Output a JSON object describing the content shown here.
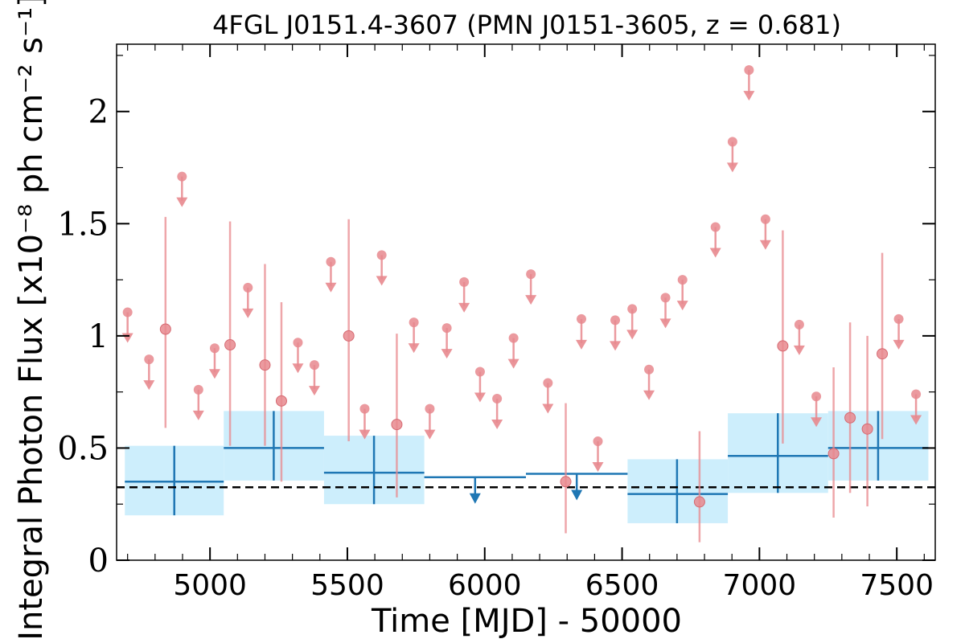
{
  "chart_data": {
    "type": "scatter",
    "title": "4FGL J0151.4-3607 (PMN J0151-3605, z = 0.681)",
    "xlabel": "Time [MJD] - 50000",
    "ylabel": "Integral Photon Flux [x10⁻⁸ ph cm⁻² s⁻¹]",
    "xlim": [
      4660,
      7640
    ],
    "ylim": [
      0,
      2.3
    ],
    "xticks": [
      5000,
      5500,
      6000,
      6500,
      7000,
      7500
    ],
    "xtick_labels": [
      "5000",
      "5500",
      "6000",
      "6500",
      "7000",
      "7500"
    ],
    "yticks": [
      0,
      0.5,
      1,
      1.5,
      2
    ],
    "ytick_labels": [
      "0",
      "0.5",
      "1",
      "1.5",
      "2"
    ],
    "mean_flux": 0.325,
    "colors": {
      "short_bins": "#e8888e",
      "long_bins": "#1f77b4",
      "long_band": "#cdeefc",
      "mean_line": "#000000"
    },
    "short_bin_detections": [
      {
        "x": 4838,
        "y": 1.03,
        "lo": 0.59,
        "hi": 1.53
      },
      {
        "x": 5073,
        "y": 0.96,
        "lo": 0.51,
        "hi": 1.51
      },
      {
        "x": 5200,
        "y": 0.87,
        "lo": 0.51,
        "hi": 1.32
      },
      {
        "x": 5260,
        "y": 0.71,
        "lo": 0.35,
        "hi": 1.15
      },
      {
        "x": 5505,
        "y": 1.0,
        "lo": 0.53,
        "hi": 1.52
      },
      {
        "x": 5680,
        "y": 0.605,
        "lo": 0.28,
        "hi": 1.01
      },
      {
        "x": 6295,
        "y": 0.35,
        "lo": 0.12,
        "hi": 0.7
      },
      {
        "x": 6782,
        "y": 0.26,
        "lo": 0.08,
        "hi": 0.575
      },
      {
        "x": 7085,
        "y": 0.955,
        "lo": 0.52,
        "hi": 1.47
      },
      {
        "x": 7270,
        "y": 0.475,
        "lo": 0.19,
        "hi": 0.86
      },
      {
        "x": 7330,
        "y": 0.635,
        "lo": 0.3,
        "hi": 1.06
      },
      {
        "x": 7393,
        "y": 0.585,
        "lo": 0.24,
        "hi": 1.0
      },
      {
        "x": 7447,
        "y": 0.92,
        "lo": 0.54,
        "hi": 1.37
      }
    ],
    "short_bin_upper_limits": [
      {
        "x": 4700,
        "y": 1.105
      },
      {
        "x": 4778,
        "y": 0.895
      },
      {
        "x": 4898,
        "y": 1.71
      },
      {
        "x": 4958,
        "y": 0.76
      },
      {
        "x": 5017,
        "y": 0.945
      },
      {
        "x": 5138,
        "y": 1.215
      },
      {
        "x": 5320,
        "y": 0.97
      },
      {
        "x": 5380,
        "y": 0.87
      },
      {
        "x": 5440,
        "y": 1.33
      },
      {
        "x": 5563,
        "y": 0.675
      },
      {
        "x": 5625,
        "y": 1.36
      },
      {
        "x": 5742,
        "y": 1.06
      },
      {
        "x": 5800,
        "y": 0.675
      },
      {
        "x": 5862,
        "y": 1.035
      },
      {
        "x": 5925,
        "y": 1.24
      },
      {
        "x": 5983,
        "y": 0.84
      },
      {
        "x": 6045,
        "y": 0.72
      },
      {
        "x": 6105,
        "y": 0.99
      },
      {
        "x": 6168,
        "y": 1.275
      },
      {
        "x": 6230,
        "y": 0.79
      },
      {
        "x": 6352,
        "y": 1.075
      },
      {
        "x": 6412,
        "y": 0.53
      },
      {
        "x": 6475,
        "y": 1.07
      },
      {
        "x": 6537,
        "y": 1.12
      },
      {
        "x": 6598,
        "y": 0.85
      },
      {
        "x": 6658,
        "y": 1.17
      },
      {
        "x": 6720,
        "y": 1.25
      },
      {
        "x": 6840,
        "y": 1.485
      },
      {
        "x": 6902,
        "y": 1.865
      },
      {
        "x": 6962,
        "y": 2.185
      },
      {
        "x": 7022,
        "y": 1.52
      },
      {
        "x": 7145,
        "y": 1.05
      },
      {
        "x": 7207,
        "y": 0.73
      },
      {
        "x": 7507,
        "y": 1.075
      },
      {
        "x": 7570,
        "y": 0.74
      }
    ],
    "long_bin_detections": [
      {
        "x0": 4690,
        "x1": 5050,
        "x": 4870,
        "y": 0.35,
        "lo": 0.2,
        "hi": 0.51
      },
      {
        "x0": 5050,
        "x1": 5415,
        "x": 5232,
        "y": 0.5,
        "lo": 0.355,
        "hi": 0.665
      },
      {
        "x0": 5415,
        "x1": 5780,
        "x": 5597,
        "y": 0.39,
        "lo": 0.25,
        "hi": 0.555
      },
      {
        "x0": 6520,
        "x1": 6885,
        "x": 6700,
        "y": 0.295,
        "lo": 0.165,
        "hi": 0.45
      },
      {
        "x0": 6885,
        "x1": 7250,
        "x": 7067,
        "y": 0.465,
        "lo": 0.3,
        "hi": 0.655
      },
      {
        "x0": 7250,
        "x1": 7615,
        "x": 7432,
        "y": 0.5,
        "lo": 0.355,
        "hi": 0.665
      }
    ],
    "long_bin_upper_limits": [
      {
        "x0": 5780,
        "x1": 6150,
        "x": 5965,
        "y": 0.37
      },
      {
        "x0": 6150,
        "x1": 6520,
        "x": 6335,
        "y": 0.385
      }
    ]
  }
}
